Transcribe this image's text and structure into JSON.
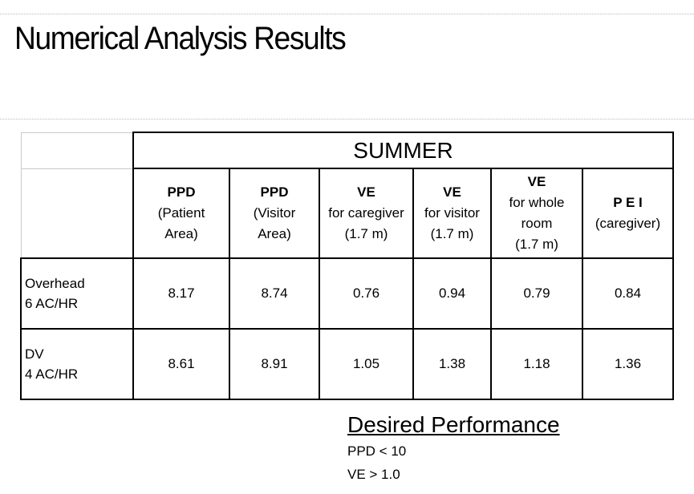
{
  "title": "Numerical Analysis Results",
  "table": {
    "season": "SUMMER",
    "columns": [
      {
        "name": "PPD",
        "sub": [
          "(Patient",
          "Area)"
        ]
      },
      {
        "name": "PPD",
        "sub": [
          "(Visitor",
          "Area)"
        ]
      },
      {
        "name": "VE",
        "sub": [
          "for caregiver",
          "(1.7 m)"
        ]
      },
      {
        "name": "VE",
        "sub": [
          "for visitor",
          "(1.7 m)"
        ]
      },
      {
        "name": "VE",
        "sub": [
          "for whole",
          "room",
          "(1.7 m)"
        ]
      },
      {
        "name": "P E I",
        "sub": [
          "(caregiver)"
        ]
      }
    ],
    "rows": [
      {
        "label": [
          "Overhead",
          "6 AC/HR"
        ],
        "values": [
          "8.17",
          "8.74",
          "0.76",
          "0.94",
          "0.79",
          "0.84"
        ]
      },
      {
        "label": [
          "DV",
          "4 AC/HR"
        ],
        "values": [
          "8.61",
          "8.91",
          "1.05",
          "1.38",
          "1.18",
          "1.36"
        ]
      }
    ]
  },
  "desired": {
    "title": "Desired Performance",
    "items": [
      "PPD < 10",
      "VE > 1.0"
    ]
  }
}
